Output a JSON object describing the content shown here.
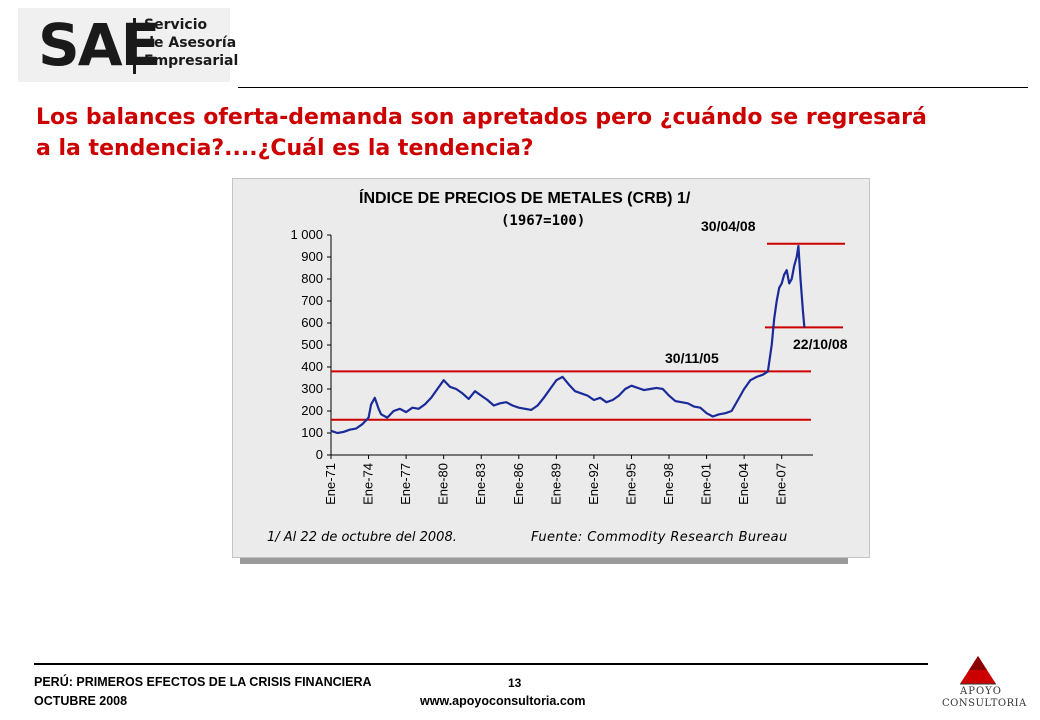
{
  "logo": {
    "brand": "SAE",
    "line1": "Servicio",
    "line2": "de Asesoría",
    "line3": "Empresarial"
  },
  "slide": {
    "title_line1": "Los balances oferta-demanda son apretados pero ¿cuándo se regresará",
    "title_line2": "a la tendencia?....¿Cuál es la tendencia?"
  },
  "chart_data": {
    "type": "line",
    "title": "ÍNDICE DE PRECIOS DE METALES (CRB) 1/",
    "subtitle": "(1967=100)",
    "x_ticks": [
      "Ene-71",
      "Ene-74",
      "Ene-77",
      "Ene-80",
      "Ene-83",
      "Ene-86",
      "Ene-89",
      "Ene-92",
      "Ene-95",
      "Ene-98",
      "Ene-01",
      "Ene-04",
      "Ene-07"
    ],
    "y_ticks": [
      "0",
      "100",
      "200",
      "300",
      "400",
      "500",
      "600",
      "700",
      "800",
      "900",
      "1 000"
    ],
    "ylim": [
      0,
      1000
    ],
    "grid": false,
    "line_color": "#1a2a9a",
    "ref_line_color": "#cc0000",
    "series": [
      {
        "x": [
          1971.0,
          1971.5,
          1972.0,
          1972.5,
          1973.0,
          1973.5,
          1974.0,
          1974.2,
          1974.5,
          1974.8,
          1975.0,
          1975.5,
          1976.0,
          1976.5,
          1977.0,
          1977.5,
          1978.0,
          1978.5,
          1979.0,
          1979.5,
          1980.0,
          1980.5,
          1981.0,
          1981.5,
          1982.0,
          1982.5,
          1983.0,
          1983.5,
          1984.0,
          1984.5,
          1985.0,
          1985.5,
          1986.0,
          1986.5,
          1987.0,
          1987.5,
          1988.0,
          1988.5,
          1989.0,
          1989.5,
          1990.0,
          1990.5,
          1991.0,
          1991.5,
          1992.0,
          1992.5,
          1993.0,
          1993.5,
          1994.0,
          1994.5,
          1995.0,
          1995.5,
          1996.0,
          1996.5,
          1997.0,
          1997.5,
          1998.0,
          1998.5,
          1999.0,
          1999.5,
          2000.0,
          2000.5,
          2001.0,
          2001.5,
          2002.0,
          2002.5,
          2003.0,
          2003.5,
          2004.0,
          2004.5,
          2005.0,
          2005.5,
          2005.9,
          2006.2,
          2006.4,
          2006.6,
          2006.8,
          2007.0,
          2007.2,
          2007.4,
          2007.6,
          2007.8,
          2008.0,
          2008.2,
          2008.33,
          2008.5,
          2008.7,
          2008.81
        ],
        "y": [
          110,
          100,
          105,
          115,
          120,
          140,
          170,
          230,
          260,
          210,
          185,
          170,
          200,
          210,
          195,
          215,
          210,
          230,
          260,
          300,
          340,
          310,
          300,
          280,
          255,
          290,
          270,
          250,
          225,
          235,
          240,
          225,
          215,
          210,
          205,
          225,
          260,
          300,
          340,
          355,
          320,
          290,
          280,
          270,
          250,
          260,
          240,
          250,
          270,
          300,
          315,
          305,
          295,
          300,
          305,
          300,
          270,
          245,
          240,
          235,
          220,
          215,
          190,
          175,
          185,
          190,
          200,
          250,
          300,
          340,
          355,
          365,
          380,
          500,
          620,
          700,
          760,
          780,
          820,
          840,
          780,
          800,
          860,
          900,
          950,
          800,
          650,
          580
        ]
      }
    ],
    "reference_lines": [
      {
        "y": 380,
        "label": "30/11/05"
      },
      {
        "y": 160
      },
      {
        "y": 960,
        "label": "30/04/08"
      },
      {
        "y": 580,
        "label": "22/10/08"
      }
    ],
    "footnote": "1/ Al 22 de octubre del 2008.",
    "source": "Fuente: Commodity Research Bureau"
  },
  "footer": {
    "line1": "PERÚ: PRIMEROS EFECTOS DE LA CRISIS FINANCIERA",
    "line2": "OCTUBRE 2008",
    "page": "13",
    "url": "www.apoyoconsultoria.com",
    "logo_line1": "APOYO",
    "logo_line2": "CONSULTORIA"
  }
}
